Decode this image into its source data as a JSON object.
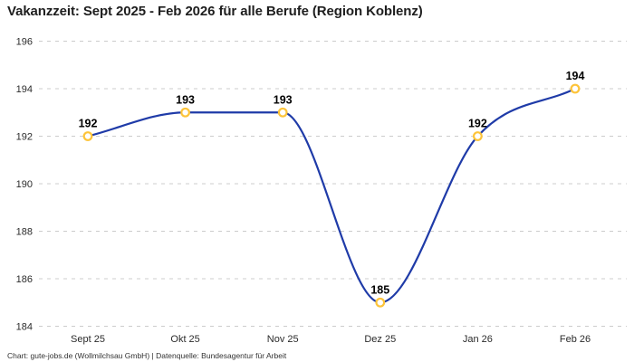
{
  "header": {
    "title": "Vakanzzeit: Sept 2025 - Feb 2026 für alle Berufe (Region Koblenz)"
  },
  "footer": {
    "credit": "Chart: gute-jobs.de (Wollmilchsau GmbH) | Datenquelle: Bundesagentur für Arbeit"
  },
  "chart_data": {
    "type": "line",
    "title": "Vakanzzeit: Sept 2025 - Feb 2026 für alle Berufe (Region Koblenz)",
    "categories": [
      "Sept 25",
      "Okt 25",
      "Nov 25",
      "Dez 25",
      "Jan 26",
      "Feb 26"
    ],
    "series": [
      {
        "name": "Vakanzzeit",
        "values": [
          192,
          193,
          193,
          185,
          192,
          194
        ],
        "data_labels": [
          "192",
          "193",
          "193",
          "185",
          "192",
          "194"
        ]
      }
    ],
    "xlabel": "",
    "ylabel": "",
    "ylim": [
      184,
      196
    ],
    "yticks": [
      184,
      186,
      188,
      190,
      192,
      194,
      196
    ],
    "grid": "horizontal-dashed",
    "legend": "none",
    "colors": {
      "line": "#1f3ba8",
      "marker_stroke": "#fdc43a",
      "marker_fill": "#ffffff",
      "gridline": "#cccccc",
      "tick_text": "#2b2b2b",
      "data_label": "#000000",
      "title_text": "#1e1e1e",
      "background": "#ffffff"
    }
  }
}
